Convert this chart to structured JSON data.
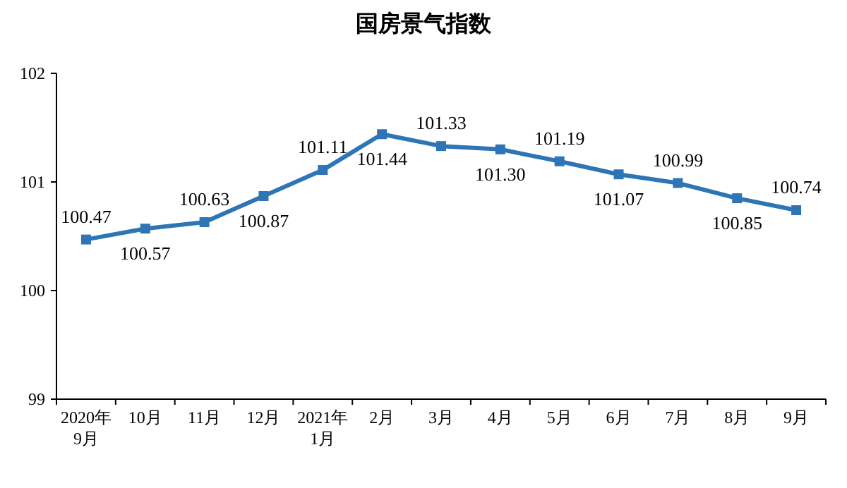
{
  "chart_data": {
    "type": "line",
    "title": "国房景气指数",
    "categories": [
      "2020年\n9月",
      "10月",
      "11月",
      "12月",
      "2021年\n1月",
      "2月",
      "3月",
      "4月",
      "5月",
      "6月",
      "7月",
      "8月",
      "9月"
    ],
    "series": [
      {
        "color": "#2e75b6",
        "values": [
          100.47,
          100.57,
          100.63,
          100.87,
          101.11,
          101.44,
          101.33,
          101.3,
          101.19,
          101.07,
          100.99,
          100.85,
          100.74
        ],
        "value_labels": [
          "100.47",
          "100.57",
          "100.63",
          "100.87",
          "101.11",
          "101.44",
          "101.33",
          "101.30",
          "101.19",
          "101.07",
          "100.99",
          "100.85",
          "100.74"
        ]
      }
    ],
    "ylim": [
      99,
      102
    ],
    "yticks": [
      99,
      100,
      101,
      102
    ],
    "grid": false,
    "marker": "square",
    "line_style": "solid"
  }
}
